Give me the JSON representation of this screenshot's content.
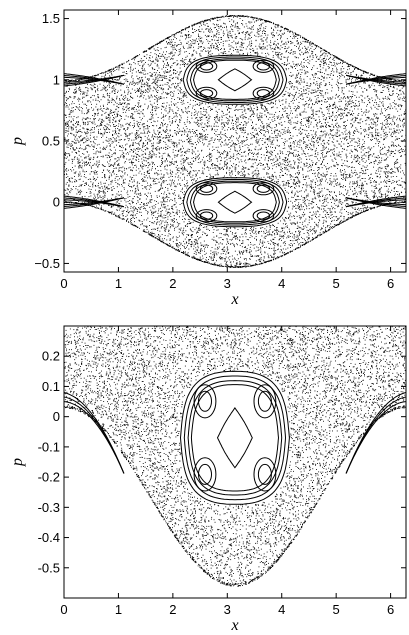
{
  "chart_data": [
    {
      "type": "scatter",
      "title": "",
      "xlabel": "x",
      "ylabel": "p",
      "xlim": [
        0,
        6.283
      ],
      "ylim": [
        -0.57,
        1.57
      ],
      "x_ticks": [
        "0",
        "1",
        "2",
        "3",
        "4",
        "5",
        "6"
      ],
      "y_ticks": [
        "−0.5",
        "0",
        "0.5",
        "1",
        "1.5"
      ],
      "x_tick_values": [
        0,
        1,
        2,
        3,
        4,
        5,
        6
      ],
      "y_tick_values": [
        -0.5,
        0,
        0.5,
        1,
        1.5
      ],
      "grid": false,
      "description_of_structure": {
        "chaotic_sea_envelope_upper_at_center": 1.53,
        "chaotic_sea_envelope_upper_at_edges": 1.0,
        "chaotic_sea_envelope_lower_at_center": -0.53,
        "chaotic_sea_envelope_lower_at_edges": 0.0,
        "island_centers": [
          [
            3.14,
            1.0
          ],
          [
            3.14,
            0.0
          ]
        ],
        "island_half_width_x": 0.95,
        "island_half_height_p": 0.2
      }
    },
    {
      "type": "scatter",
      "title": "",
      "xlabel": "x",
      "ylabel": "p",
      "xlim": [
        0,
        6.283
      ],
      "ylim": [
        -0.6,
        0.3
      ],
      "x_ticks": [
        "0",
        "1",
        "2",
        "3",
        "4",
        "5",
        "6"
      ],
      "y_ticks": [
        "0.2",
        "0.1",
        "0",
        "-0.1",
        "-0.2",
        "-0.3",
        "-0.4",
        "-0.5"
      ],
      "x_tick_values": [
        0,
        1,
        2,
        3,
        4,
        5,
        6
      ],
      "y_tick_values": [
        0.2,
        0.1,
        0,
        -0.1,
        -0.2,
        -0.3,
        -0.4,
        -0.5
      ],
      "grid": false,
      "description_of_structure": {
        "chaotic_sea_envelope_lower_at_center": -0.56,
        "chaotic_sea_envelope_lower_at_edges": 0.03,
        "island_center": [
          3.14,
          -0.07
        ],
        "island_half_width_x": 1.0,
        "island_half_height_p": 0.22
      }
    }
  ]
}
